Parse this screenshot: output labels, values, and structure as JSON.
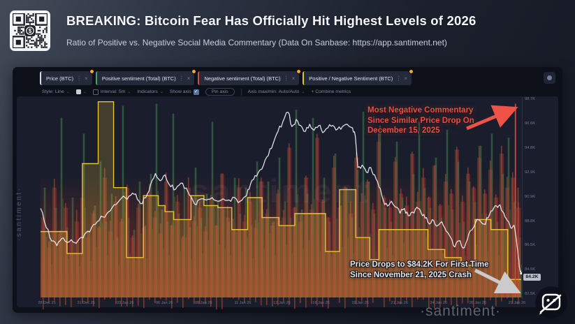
{
  "header": {
    "title": "BREAKING: Bitcoin Fear Has Officially Hit Highest Levels of 2026",
    "subtitle": "Ratio of Positive vs. Negative Social Media Commentary (Data On Sanbase: https://app.santiment.net)"
  },
  "icons": {
    "kebab": "⋮",
    "close": "×",
    "caret": "⌄",
    "check": "✓"
  },
  "tabs": [
    {
      "label": "Price (BTC)",
      "color": "#d8dce5"
    },
    {
      "label": "Positive sentiment (Total) (BTC)",
      "color": "#3fae5a"
    },
    {
      "label": "Negative sentiment (Total) (BTC)",
      "color": "#d84b3f"
    },
    {
      "label": "Positive / Negative Sentiment (BTC)",
      "color": "#e7bf3a"
    }
  ],
  "toolbar": {
    "style_label": "Style: Line",
    "interval_label": "Interval: 5m",
    "indicators_label": "Indicators",
    "show_axis_label": "Show axis",
    "pin_axis_label": "Pin axis",
    "axis_label": "Axis max/min: Auto/Auto",
    "combine_label": "+ Combine metrics"
  },
  "annotations": {
    "negative_commentary": {
      "text": "Most Negative Commentary\nSince Similar Price Drop On\nDecember 15, 2025",
      "color": "#ef4c41"
    },
    "price_drop": {
      "text": "Price Drops to $84.2K For First Time\nSince November 21, 2025 Crash",
      "color": "#e4e4e6"
    }
  },
  "watermarks": {
    "left": "·santiment·",
    "center": "santiment",
    "bottom": "·santiment·"
  },
  "axis": {
    "y_ticks": [
      "98.7K",
      "96.6K",
      "94.8K",
      "92.9K",
      "90.9K",
      "88.8K",
      "86.5K",
      "84.5K",
      "82.5K"
    ],
    "x_ticks": [
      "28 Dec 25",
      "31 Dec 25",
      "03 Jan 26",
      "06 Jan 26",
      "08 Jan 26",
      "11 Jan 26",
      "13 Jan 26",
      "16 Jan 26",
      "19 Jan 26",
      "21 Jan 26",
      "24 Jan 26",
      "26 Jan 26",
      "29 Jan 26"
    ],
    "current_price_badge": "84.2K"
  },
  "chart_data": [
    {
      "type": "line",
      "name": "Price (BTC)",
      "unit": "K USD",
      "color": "#edeff5",
      "ylim": [
        82.2,
        98.8
      ],
      "points": [
        [
          0,
          89.6
        ],
        [
          1.2,
          88.0
        ],
        [
          2.3,
          86.9
        ],
        [
          3.4,
          86.5
        ],
        [
          4.4,
          87.1
        ],
        [
          5.4,
          86.8
        ],
        [
          6.4,
          87.0
        ],
        [
          7.4,
          86.7
        ],
        [
          8.5,
          87.2
        ],
        [
          9.5,
          87.6
        ],
        [
          10.6,
          88.0
        ],
        [
          11.8,
          88.5
        ],
        [
          13.0,
          88.9
        ],
        [
          14.1,
          89.3
        ],
        [
          15.3,
          89.9
        ],
        [
          16.5,
          90.3
        ],
        [
          17.6,
          90.5
        ],
        [
          18.8,
          90.7
        ],
        [
          19.8,
          90.8
        ],
        [
          20.8,
          90.0
        ],
        [
          21.9,
          90.5
        ],
        [
          22.9,
          91.6
        ],
        [
          23.9,
          92.5
        ],
        [
          24.9,
          91.9
        ],
        [
          25.9,
          92.4
        ],
        [
          27.1,
          91.4
        ],
        [
          28.1,
          91.2
        ],
        [
          29.2,
          91.7
        ],
        [
          30.3,
          91.3
        ],
        [
          31.3,
          90.6
        ],
        [
          32.4,
          89.9
        ],
        [
          33.4,
          90.4
        ],
        [
          34.5,
          90.3
        ],
        [
          35.7,
          90.5
        ],
        [
          36.9,
          90.2
        ],
        [
          38.0,
          90.4
        ],
        [
          39.2,
          90.3
        ],
        [
          40.4,
          90.5
        ],
        [
          41.5,
          90.2
        ],
        [
          42.6,
          90.6
        ],
        [
          43.4,
          91.2
        ],
        [
          44.3,
          92.0
        ],
        [
          45.3,
          92.6
        ],
        [
          46.4,
          93.2
        ],
        [
          47.4,
          94.0
        ],
        [
          48.4,
          95.0
        ],
        [
          49.4,
          96.0
        ],
        [
          50.4,
          96.8
        ],
        [
          51.5,
          97.6
        ],
        [
          52.3,
          96.4
        ],
        [
          53.2,
          97.0
        ],
        [
          54.1,
          96.5
        ],
        [
          55.1,
          96.0
        ],
        [
          56.0,
          96.6
        ],
        [
          56.9,
          96.1
        ],
        [
          57.9,
          96.5
        ],
        [
          58.7,
          95.9
        ],
        [
          59.8,
          96.3
        ],
        [
          60.8,
          96.5
        ],
        [
          61.8,
          96.2
        ],
        [
          62.8,
          96.4
        ],
        [
          63.8,
          96.6
        ],
        [
          64.9,
          96.3
        ],
        [
          65.5,
          95.6
        ],
        [
          66.0,
          93.0
        ],
        [
          66.9,
          93.2
        ],
        [
          67.8,
          92.6
        ],
        [
          68.7,
          93.0
        ],
        [
          69.5,
          92.4
        ],
        [
          70.4,
          91.4
        ],
        [
          71.3,
          90.3
        ],
        [
          72.2,
          89.8
        ],
        [
          73.0,
          90.2
        ],
        [
          73.9,
          89.7
        ],
        [
          74.8,
          89.2
        ],
        [
          75.7,
          89.6
        ],
        [
          76.5,
          89.0
        ],
        [
          77.4,
          89.3
        ],
        [
          78.3,
          89.7
        ],
        [
          79.2,
          89.2
        ],
        [
          80.0,
          88.8
        ],
        [
          80.9,
          88.3
        ],
        [
          81.8,
          88.6
        ],
        [
          82.7,
          88.2
        ],
        [
          83.5,
          88.5
        ],
        [
          84.4,
          87.7
        ],
        [
          85.3,
          87.2
        ],
        [
          86.2,
          86.4
        ],
        [
          87.0,
          86.9
        ],
        [
          87.9,
          86.3
        ],
        [
          88.8,
          87.0
        ],
        [
          89.7,
          87.8
        ],
        [
          90.5,
          88.4
        ],
        [
          91.4,
          88.6
        ],
        [
          92.3,
          88.3
        ],
        [
          93.1,
          88.8
        ],
        [
          94.0,
          89.4
        ],
        [
          94.9,
          89.8
        ],
        [
          95.6,
          89.9
        ],
        [
          96.4,
          89.2
        ],
        [
          97.1,
          88.6
        ],
        [
          97.8,
          88.0
        ],
        [
          98.5,
          88.2
        ],
        [
          99.0,
          87.0
        ],
        [
          99.4,
          85.5
        ],
        [
          99.7,
          84.6
        ],
        [
          100,
          84.2
        ]
      ],
      "last_value": 84.2
    },
    {
      "type": "area",
      "style": "step",
      "name": "Positive / Negative Sentiment (BTC)",
      "color": "#e9c335",
      "fill_opacity": 0.2,
      "steps": [
        [
          0,
          5.5,
          0.33
        ],
        [
          5.5,
          8.7,
          0.22
        ],
        [
          8.7,
          12.0,
          0.67
        ],
        [
          12.0,
          15.2,
          0.98
        ],
        [
          15.2,
          17.9,
          0.55
        ],
        [
          17.9,
          21.4,
          0.2
        ],
        [
          21.4,
          24.5,
          0.51
        ],
        [
          24.5,
          25.9,
          0.46
        ],
        [
          25.9,
          27.7,
          0.43
        ],
        [
          27.7,
          31.3,
          0.39
        ],
        [
          31.3,
          34.0,
          0.51
        ],
        [
          34.0,
          36.9,
          0.46
        ],
        [
          36.9,
          39.8,
          0.45
        ],
        [
          39.8,
          43.1,
          0.34
        ],
        [
          43.1,
          46.1,
          0.5
        ],
        [
          46.1,
          49.6,
          0.4
        ],
        [
          49.6,
          52.9,
          0.36
        ],
        [
          52.9,
          59.3,
          0.42
        ],
        [
          59.3,
          62.2,
          0.23
        ],
        [
          62.2,
          65.6,
          0.54
        ],
        [
          65.6,
          68.5,
          0.3
        ],
        [
          68.5,
          70.4,
          0.19
        ],
        [
          70.4,
          80.6,
          0.34
        ],
        [
          80.6,
          84.1,
          0.24
        ],
        [
          84.1,
          87.5,
          0.2
        ],
        [
          87.5,
          90.4,
          0.16
        ],
        [
          90.4,
          93.7,
          0.39
        ],
        [
          93.7,
          97.2,
          0.34
        ],
        [
          97.2,
          100,
          0.09
        ]
      ]
    },
    {
      "type": "bar",
      "name": "Positive sentiment (Total) (BTC)",
      "color": "#3d7a48",
      "values": [
        0.55,
        0.3,
        0.45,
        0.9,
        0.35,
        0.5,
        0.28,
        0.82,
        0.33,
        0.46,
        0.68,
        0.38,
        0.52,
        0.3,
        0.96,
        0.4,
        0.34,
        0.58,
        0.36,
        0.62,
        0.97,
        0.44,
        0.38,
        0.92,
        0.42,
        0.55,
        0.35,
        0.65,
        0.4,
        0.52,
        0.88,
        0.48,
        0.44,
        0.38,
        0.6,
        0.42,
        0.55,
        0.36,
        0.68,
        0.44,
        0.58,
        0.38,
        0.7,
        0.48,
        0.4,
        0.94,
        0.44,
        0.52,
        0.9,
        0.42,
        0.6,
        0.38,
        0.72,
        0.46,
        0.55,
        0.4,
        0.64,
        0.93,
        0.58,
        0.42,
        0.86,
        0.45,
        0.38,
        0.78,
        0.5,
        0.42,
        0.62,
        0.88,
        0.55,
        0.45,
        0.7,
        0.4,
        0.84,
        0.44,
        0.68,
        0.38,
        0.58,
        0.48,
        0.76,
        0.42,
        0.82,
        0.38,
        0.62,
        0.8,
        0.48,
        0.3
      ]
    },
    {
      "type": "bar",
      "name": "Negative sentiment (Total) (BTC)",
      "color": "#b23f33",
      "values": [
        0.4,
        0.25,
        0.55,
        0.32,
        0.45,
        0.28,
        0.38,
        0.5,
        0.3,
        0.42,
        0.35,
        0.6,
        0.33,
        0.48,
        0.38,
        0.55,
        0.3,
        0.45,
        0.35,
        0.52,
        0.4,
        0.32,
        0.58,
        0.36,
        0.48,
        0.3,
        0.55,
        0.38,
        0.45,
        0.33,
        0.5,
        0.36,
        0.62,
        0.4,
        0.34,
        0.55,
        0.38,
        0.48,
        0.35,
        0.58,
        0.42,
        0.36,
        0.52,
        0.4,
        0.75,
        0.45,
        0.38,
        0.6,
        0.44,
        0.8,
        0.48,
        0.4,
        0.65,
        0.45,
        0.55,
        0.42,
        0.7,
        0.48,
        0.58,
        0.44,
        0.78,
        0.5,
        0.45,
        0.68,
        0.52,
        0.46,
        0.72,
        0.48,
        0.6,
        0.5,
        0.66,
        0.46,
        0.58,
        0.52,
        0.74,
        0.48,
        0.62,
        0.55,
        0.7,
        0.52,
        0.64,
        0.5,
        0.72,
        0.55,
        0.6,
        0.45
      ],
      "spike": {
        "x_pct": 98.8,
        "height": 0.97
      }
    }
  ]
}
